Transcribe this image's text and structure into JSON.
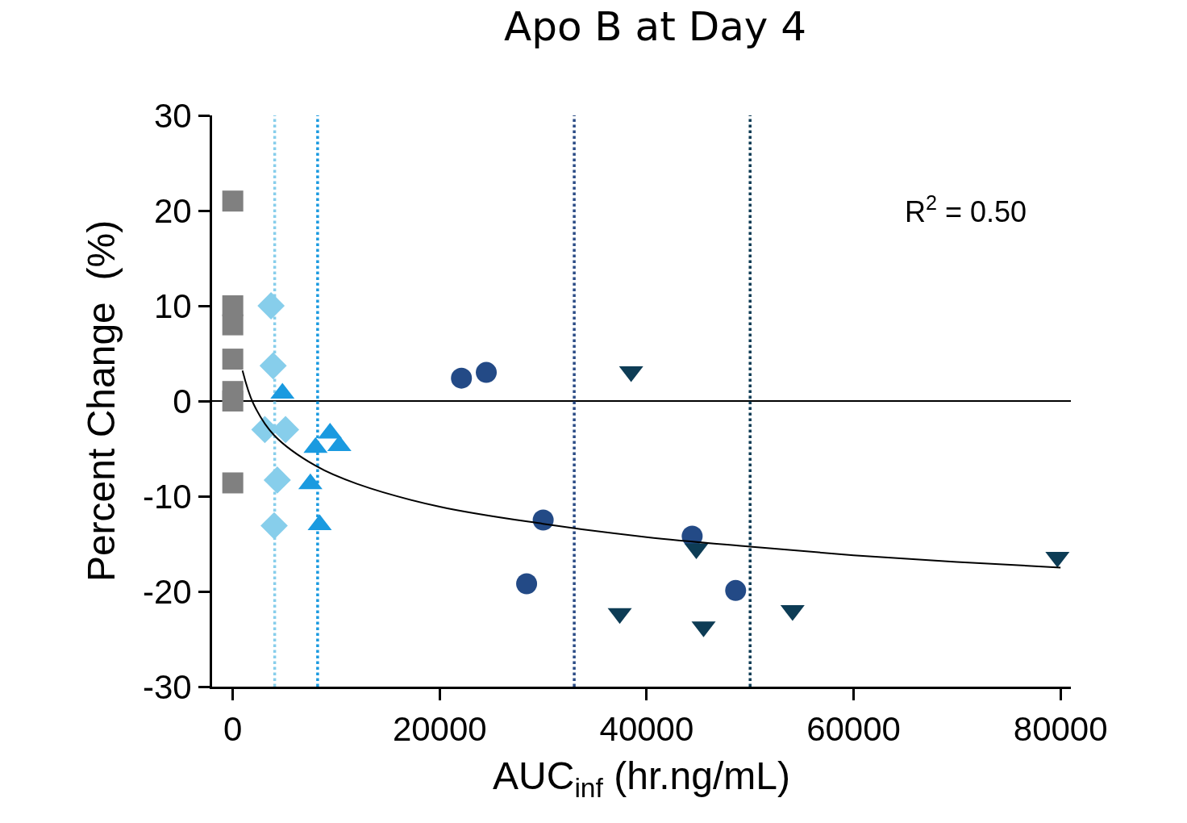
{
  "chart_data": {
    "type": "scatter",
    "title": "Apo B at Day 4",
    "xlabel": "AUC$_{inf}$ (hr.ng/mL)",
    "ylabel": "Percent Change  (%)",
    "xlim": [
      -2000,
      81000
    ],
    "xticks": [
      0,
      20000,
      40000,
      60000,
      80000
    ],
    "ylim": [
      -30,
      30
    ],
    "yticks": [
      -30,
      -20,
      -10,
      0,
      10,
      20,
      30
    ],
    "grid": false,
    "annotations": [
      "R$^{2}$ = 0.50"
    ],
    "ref_lines": [
      {
        "axis": "y",
        "value": 0,
        "label": null,
        "color": "#000000",
        "line_style": "solid"
      },
      {
        "axis": "x",
        "value": 4050,
        "label": null,
        "color": "#87ceeb",
        "line_style": "dotted"
      },
      {
        "axis": "x",
        "value": 8200,
        "label": null,
        "color": "#1a9ae0",
        "line_style": "dotted"
      },
      {
        "axis": "x",
        "value": 33000,
        "label": null,
        "color": "#2b4c86",
        "line_style": "dotted"
      },
      {
        "axis": "x",
        "value": 50000,
        "label": null,
        "color": "#0d3c55",
        "line_style": "dotted"
      }
    ],
    "series": [
      {
        "color": "#808080",
        "marker": "square",
        "x": [
          0,
          0,
          0,
          0,
          0,
          0,
          0
        ],
        "values": [
          21,
          10,
          8,
          4.4,
          1,
          0,
          -8.6
        ]
      },
      {
        "color": "#87ceeb",
        "marker": "diamond",
        "x": [
          3700,
          3900,
          3100,
          5100,
          4300,
          4000
        ],
        "values": [
          10,
          3.7,
          -3,
          -3,
          -8.3,
          -13.1
        ]
      },
      {
        "color": "#1a9ae0",
        "marker": "triangle",
        "x": [
          4800,
          8000,
          9400,
          10300,
          7500,
          8400
        ],
        "values": [
          0.8,
          -4.9,
          -3.4,
          -4.7,
          -8.7,
          -13
        ]
      },
      {
        "color": "#234a86",
        "marker": "circle",
        "x": [
          22100,
          24500,
          30000,
          28400,
          44400,
          48600
        ],
        "values": [
          2.4,
          3.0,
          -12.5,
          -19.2,
          -14.2,
          -19.9
        ]
      },
      {
        "color": "#0d3c55",
        "marker": "triangle-down",
        "x": [
          38500,
          44800,
          37400,
          45500,
          54100,
          79700
        ],
        "values": [
          3.1,
          -15.5,
          -22.3,
          -23.7,
          -22,
          -16.4
        ]
      },
      {
        "type": "line",
        "color": "#000000",
        "line_style": "solid",
        "marker": "none",
        "x": [
          940,
          2000,
          4000,
          8000,
          12000,
          20000,
          30000,
          40000,
          50000,
          60000,
          70000,
          80000
        ],
        "values": [
          3.2,
          -0.3,
          -3.6,
          -6.8,
          -8.7,
          -11.1,
          -12.9,
          -14.3,
          -15.3,
          -16.2,
          -16.9,
          -17.5
        ]
      }
    ]
  }
}
